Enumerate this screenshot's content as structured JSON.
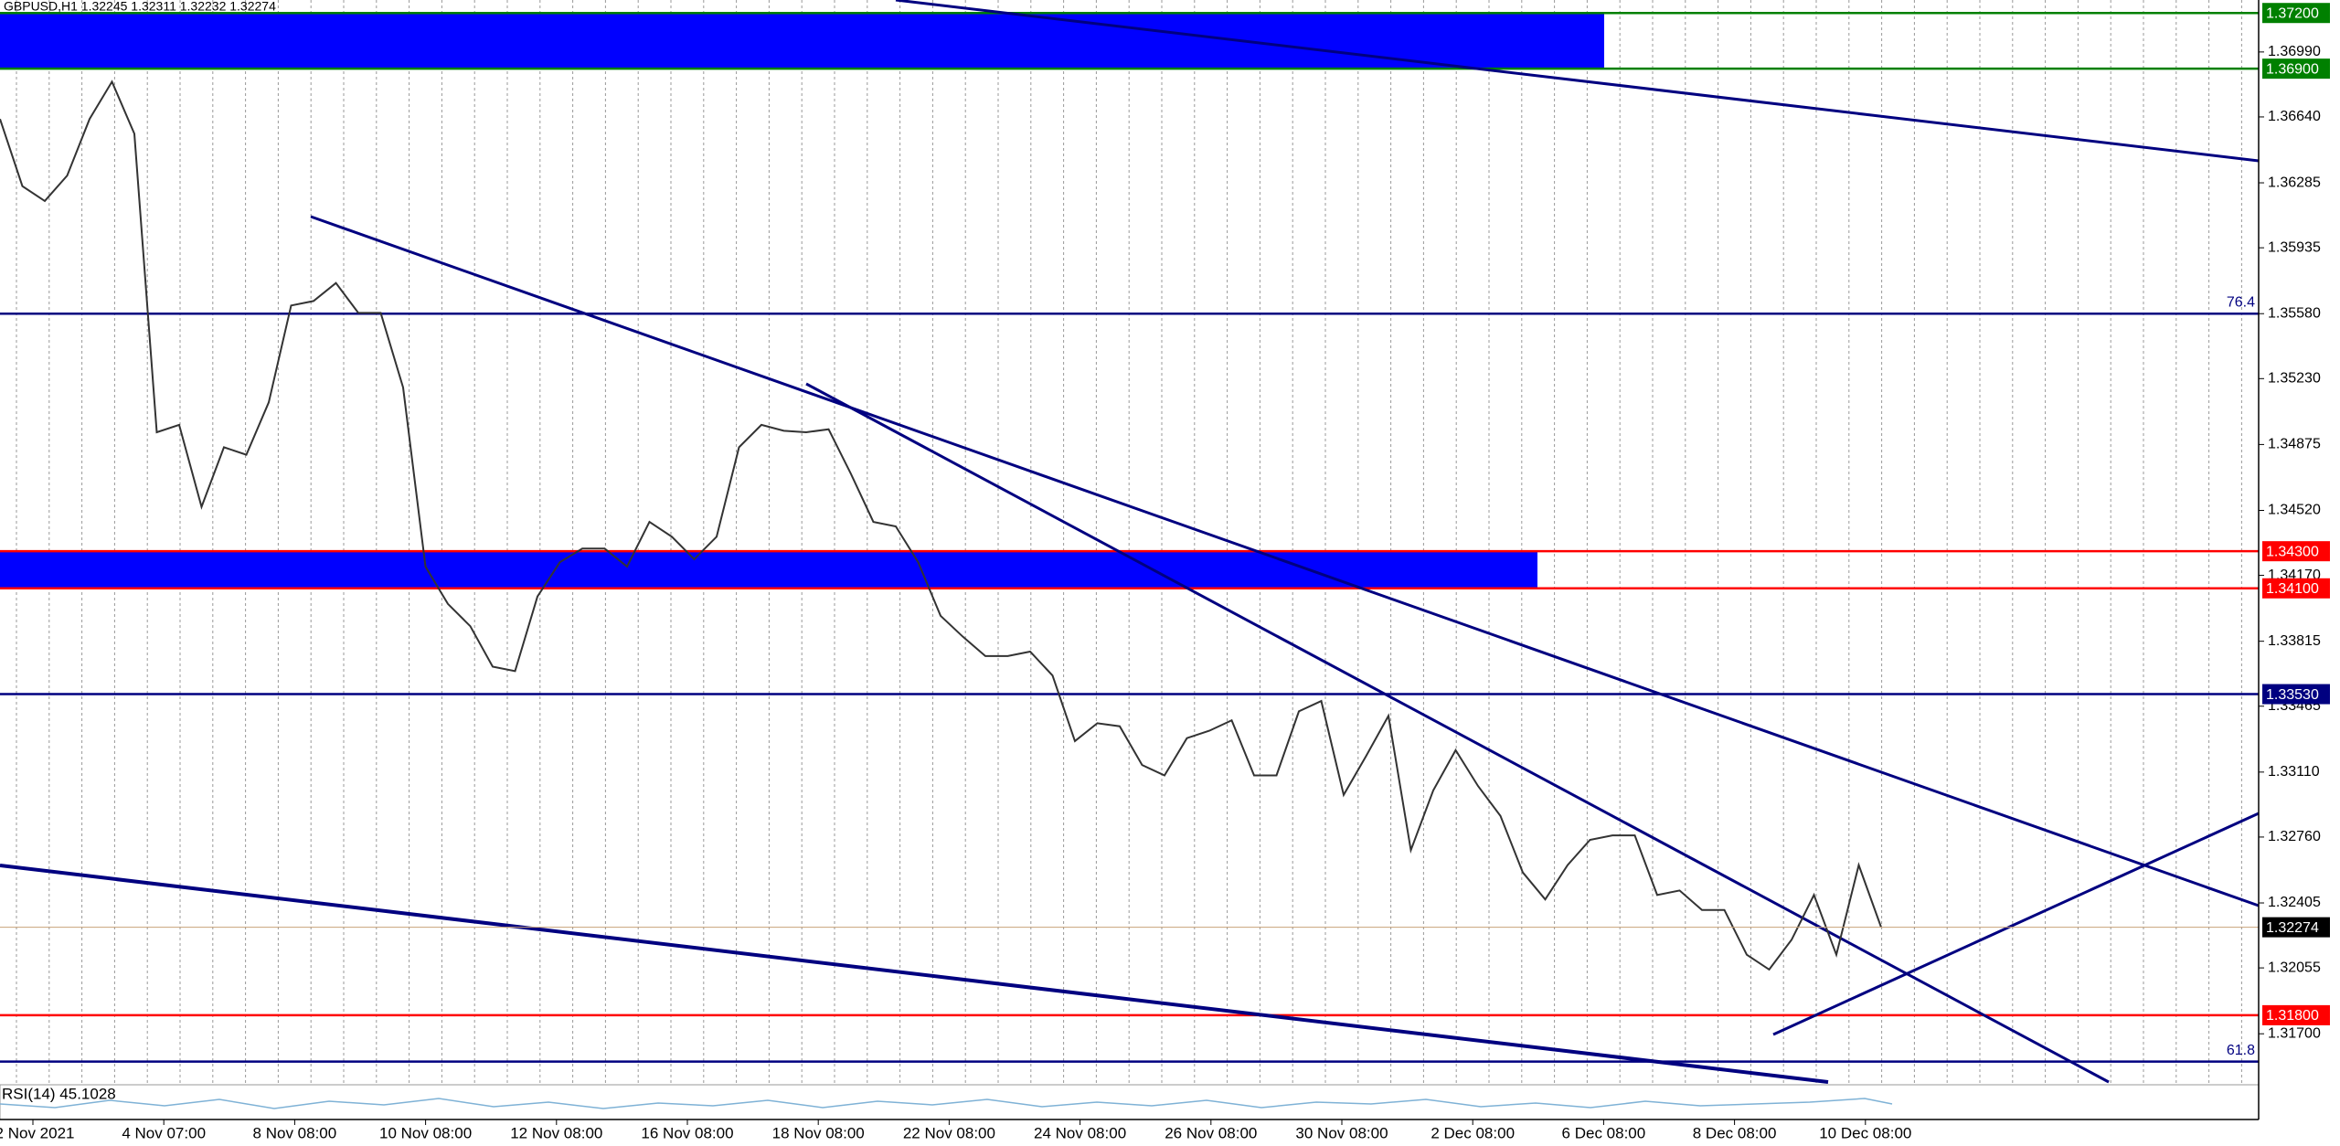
{
  "header": "GBPUSD,H1  1.32245 1.32311 1.32232 1.32274",
  "indicator": "RSI(14) 45.1028",
  "chart_data": {
    "type": "line",
    "ylim": [
      1.3144,
      1.3727
    ],
    "yticks": [
      {
        "value": 1.3699,
        "label": "1.36990"
      },
      {
        "value": 1.3664,
        "label": "1.36640"
      },
      1.36285,
      1.35935,
      {
        "value": 1.3558,
        "label": "1.35580"
      },
      {
        "value": 1.3523,
        "label": "1.35230"
      },
      1.34875,
      {
        "value": 1.3452,
        "label": "1.34520"
      },
      {
        "value": 1.3417,
        "label": "1.34170"
      },
      1.33815,
      1.33465,
      {
        "value": 1.3311,
        "label": "1.33110"
      },
      {
        "value": 1.3276,
        "label": "1.32760"
      },
      1.32405,
      1.32055,
      {
        "value": 1.317,
        "label": "1.31700"
      }
    ],
    "x_labels": [
      "2 Nov 2021",
      "4 Nov 07:00",
      "8 Nov 08:00",
      "10 Nov 08:00",
      "12 Nov 08:00",
      "16 Nov 08:00",
      "18 Nov 08:00",
      "22 Nov 08:00",
      "24 Nov 08:00",
      "26 Nov 08:00",
      "30 Nov 08:00",
      "2 Dec 08:00",
      "6 Dec 08:00",
      "8 Dec 08:00",
      "10 Dec 08:00"
    ],
    "series": [
      {
        "color": "#333333",
        "values": [
          1.36629,
          1.36267,
          1.36187,
          1.36324,
          1.36629,
          1.3683,
          1.36549,
          1.34941,
          1.34981,
          1.34539,
          1.3486,
          1.3482,
          1.35102,
          1.35624,
          1.35648,
          1.35745,
          1.35584,
          1.35584,
          1.35182,
          1.34217,
          1.34016,
          1.33896,
          1.33678,
          1.33654,
          1.34056,
          1.34241,
          1.34314,
          1.34314,
          1.34217,
          1.34458,
          1.34378,
          1.34257,
          1.34378,
          1.3486,
          1.34981,
          1.34949,
          1.34941,
          1.34957,
          1.34716,
          1.34458,
          1.34434,
          1.34241,
          1.33952,
          1.33839,
          1.33735,
          1.33735,
          1.33759,
          1.3363,
          1.33277,
          1.33373,
          1.33357,
          1.33148,
          1.33092,
          1.33293,
          1.33333,
          1.33389,
          1.33092,
          1.33092,
          1.33437,
          1.33493,
          1.32987,
          1.33196,
          1.33413,
          1.32689,
          1.33011,
          1.33228,
          1.33035,
          1.32874,
          1.32569,
          1.32424,
          1.32609,
          1.32745,
          1.32769,
          1.32769,
          1.32448,
          1.32472,
          1.32367,
          1.32367,
          1.32126,
          1.32046,
          1.32206,
          1.32448,
          1.32126,
          1.32609,
          1.32274
        ]
      }
    ],
    "zones": [
      {
        "from": 1.369,
        "to": 1.372,
        "color": "#0000ff"
      },
      {
        "from": 1.341,
        "to": 1.343,
        "color": "#0000ff"
      }
    ],
    "levels": [
      {
        "value": 1.372,
        "label": "1.37200",
        "color": "#008000"
      },
      {
        "value": 1.369,
        "label": "1.36900",
        "color": "#008000"
      },
      {
        "value": 1.3558,
        "color": "#000080",
        "fib": 76.4
      },
      {
        "value": 1.343,
        "label": "1.34300",
        "color": "#ff0000"
      },
      {
        "value": 1.341,
        "label": "1.34100",
        "color": "#ff0000"
      },
      {
        "value": 1.3353,
        "label": "1.33530",
        "color": "#000080"
      },
      {
        "value": 1.318,
        "label": "1.31800",
        "color": "#ff0000"
      },
      {
        "value": 1.3155,
        "color": "#000080",
        "fib": 61.8
      }
    ],
    "last_price": 1.32274
  }
}
